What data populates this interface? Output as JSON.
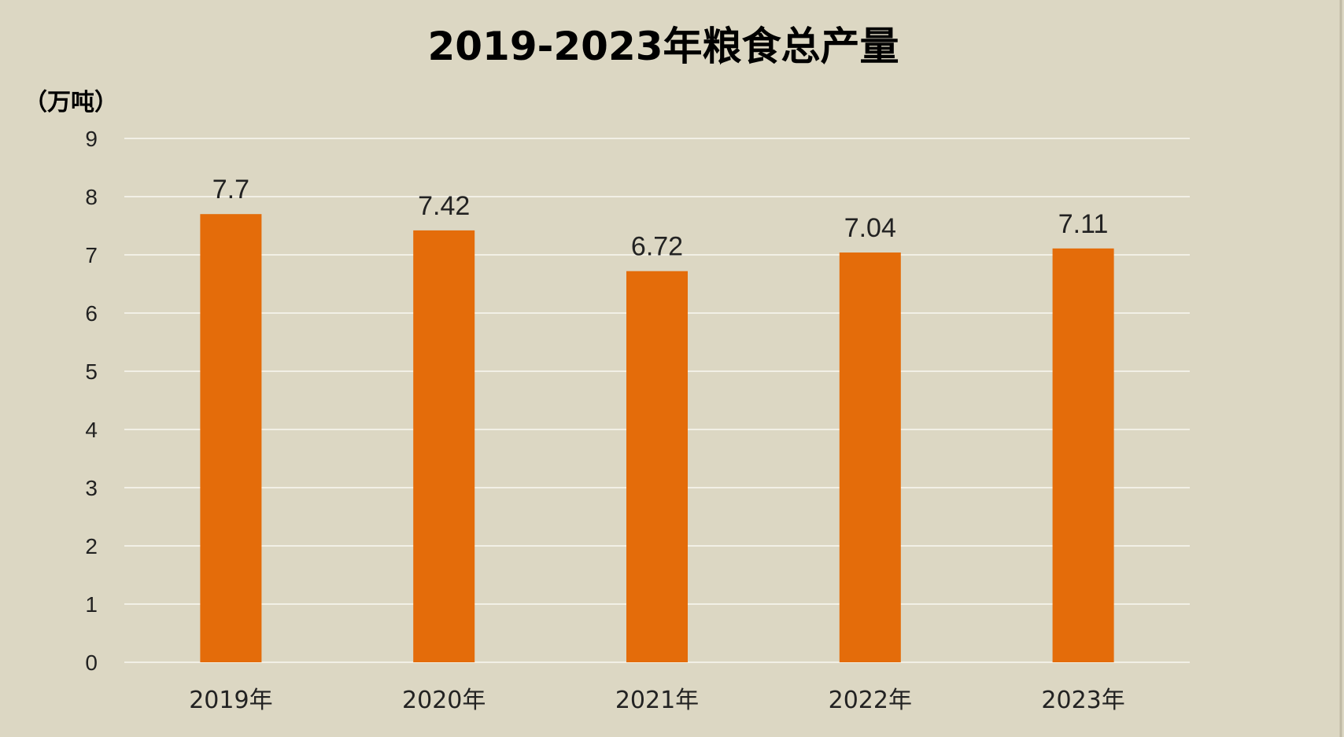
{
  "chart_data": {
    "type": "bar",
    "title": "2019-2023年粮食总产量",
    "unit_label": "（万吨）",
    "categories": [
      "2019年",
      "2020年",
      "2021年",
      "2022年",
      "2023年"
    ],
    "values": [
      7.7,
      7.42,
      6.72,
      7.04,
      7.11
    ],
    "data_labels": [
      "7.7",
      "7.42",
      "6.72",
      "7.04",
      "7.11"
    ],
    "ylim": [
      0,
      9
    ],
    "yticks": [
      0,
      1,
      2,
      3,
      4,
      5,
      6,
      7,
      8,
      9
    ],
    "grid": true,
    "legend": "none",
    "colors": {
      "bar": "#e46c0a",
      "background": "#dcd7c3",
      "gridline": "#f2f0e6",
      "frame": "#bfb9a4"
    }
  }
}
